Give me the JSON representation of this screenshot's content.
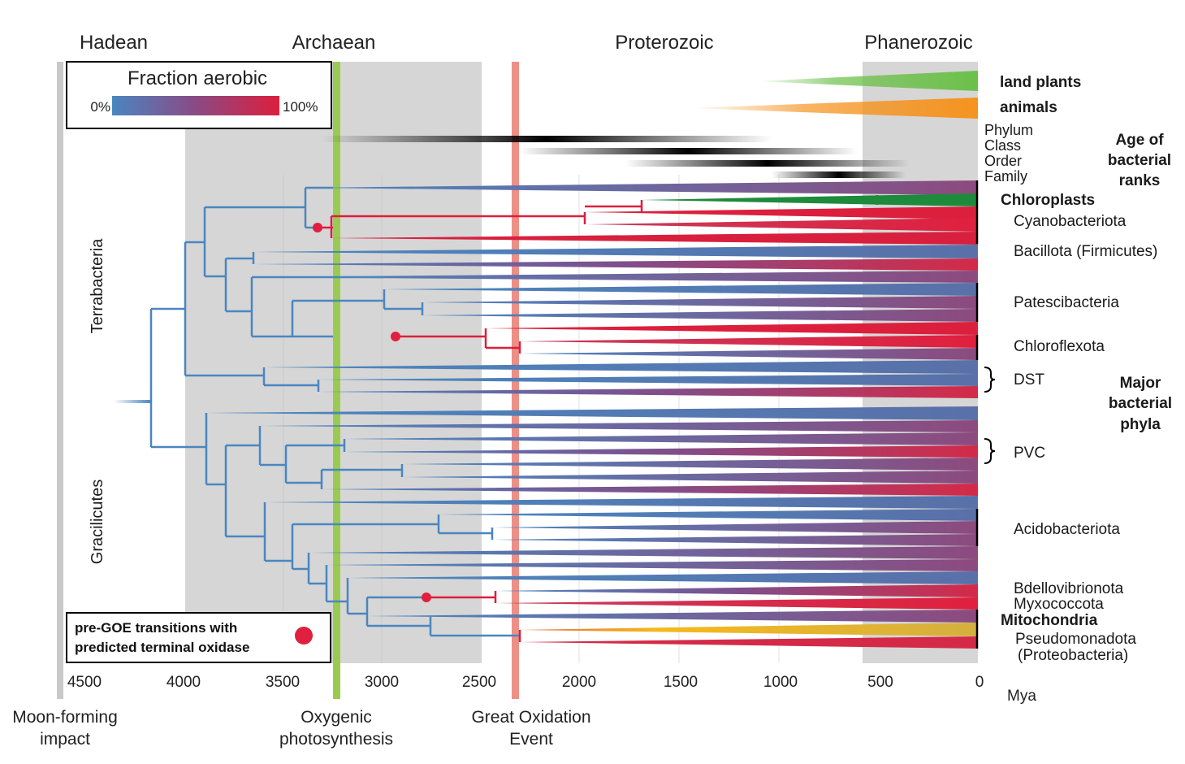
{
  "eons": [
    "Hadean",
    "Archaean",
    "Proterozoic",
    "Phanerozoic"
  ],
  "legend": {
    "title": "Fraction aerobic",
    "min_label": "0%",
    "max_label": "100%"
  },
  "legend2": {
    "line1": "pre-GOE transitions with",
    "line2": "predicted terminal oxidase"
  },
  "axis": {
    "ticks": [
      "4500",
      "4000",
      "3500",
      "3000",
      "2500",
      "2000",
      "1500",
      "1000",
      "500",
      "0"
    ],
    "unit": "Mya"
  },
  "events": {
    "moon": [
      "Moon-forming",
      "impact"
    ],
    "oxygenic": [
      "Oxygenic",
      "photosynthesis"
    ],
    "goe": [
      "Great Oxidation",
      "Event"
    ]
  },
  "side_labels": {
    "terrabacteria": "Terrabacteria",
    "gracilicutes": "Gracilicutes"
  },
  "eukaryotes": {
    "plants": "land plants",
    "animals": "animals"
  },
  "ranks": {
    "items": [
      "Phylum",
      "Class",
      "Order",
      "Family"
    ],
    "title": [
      "Age of",
      "bacterial",
      "ranks"
    ]
  },
  "phyla": {
    "chloroplasts": "Chloroplasts",
    "cyanobacteriota": "Cyanobacteriota",
    "bacillota": "Bacillota (Firmicutes)",
    "patescibacteria": "Patescibacteria",
    "chloroflexota": "Chloroflexota",
    "dst": "DST",
    "pvc": "PVC",
    "acidobacteriota": "Acidobacteriota",
    "bdellovibrionota": "Bdellovibrionota",
    "myxococcota": "Myxococcota",
    "mitochondria": "Mitochondria",
    "pseudomonadota": "Pseudomonadota",
    "proteobacteria": "(Proteobacteria)"
  },
  "major_title": [
    "Major",
    "bacterial",
    "phyla"
  ],
  "colors": {
    "anaerobic": "#4a86c0",
    "aerobic": "#dc1f3c",
    "plants": "#6cc04a",
    "animals": "#f5931e",
    "chloroplast": "#1e8a3c",
    "mitochondria": "#f7c11a",
    "oxygenic_line": "#9acb50",
    "goe_line": "#ee8f86"
  }
}
